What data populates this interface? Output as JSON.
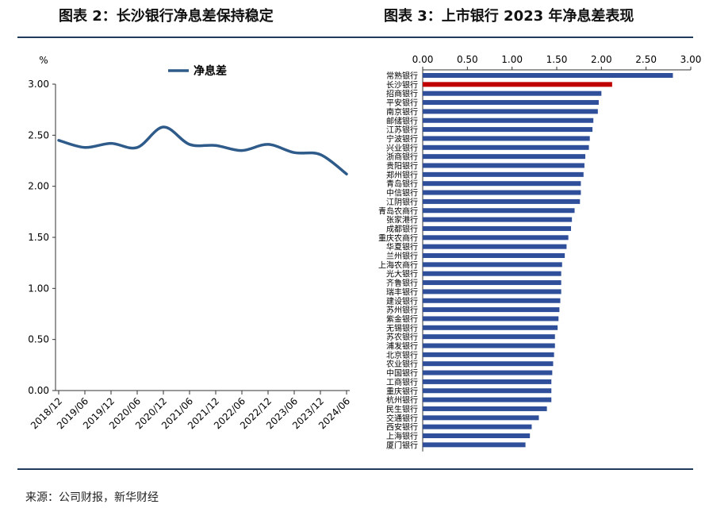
{
  "titles": {
    "left": "图表 2：长沙银行净息差保持稳定",
    "right": "图表 3：上市银行 2023 年净息差表现"
  },
  "source": "来源：公司财报，新华财经",
  "colors": {
    "line": "#2e5b8a",
    "bar": "#2f4f9a",
    "highlight": "#c00000",
    "rule": "#1f3a5a"
  },
  "chart_data": [
    {
      "type": "line",
      "unit": "%",
      "legend": "净息差",
      "legend_placement": "top",
      "x_ticks": [
        "2018/12",
        "2019/06",
        "2019/12",
        "2020/06",
        "2020/12",
        "2021/06",
        "2021/12",
        "2022/06",
        "2022/12",
        "2023/06",
        "2023/12",
        "2024/06"
      ],
      "series": [
        {
          "name": "净息差",
          "x": [
            "2018/12",
            "2019/06",
            "2019/12",
            "2020/06",
            "2020/12",
            "2021/06",
            "2021/12",
            "2022/06",
            "2022/12",
            "2023/06",
            "2023/12",
            "2024/06"
          ],
          "values": [
            2.45,
            2.38,
            2.42,
            2.38,
            2.58,
            2.41,
            2.4,
            2.35,
            2.41,
            2.33,
            2.31,
            2.12
          ]
        }
      ],
      "ylim": [
        0,
        3.0
      ],
      "y_ticks": [
        "0.00",
        "0.50",
        "1.00",
        "1.50",
        "2.00",
        "2.50",
        "3.00"
      ],
      "grid": false
    },
    {
      "type": "bar",
      "orientation": "horizontal",
      "x_ticks": [
        "0.00",
        "0.50",
        "1.00",
        "1.50",
        "2.00",
        "2.50",
        "3.00"
      ],
      "xlim": [
        0,
        3.0
      ],
      "highlight": "长沙银行",
      "categories": [
        "常熟银行",
        "长沙银行",
        "招商银行",
        "平安银行",
        "南京银行",
        "邮储银行",
        "江苏银行",
        "宁波银行",
        "兴业银行",
        "浙商银行",
        "贵阳银行",
        "郑州银行",
        "青岛银行",
        "中信银行",
        "江阴银行",
        "青岛农商行",
        "张家港行",
        "成都银行",
        "重庆农商行",
        "华夏银行",
        "兰州银行",
        "上海农商行",
        "光大银行",
        "齐鲁银行",
        "瑞丰银行",
        "建设银行",
        "苏州银行",
        "紫金银行",
        "无锡银行",
        "苏农银行",
        "浦发银行",
        "北京银行",
        "农业银行",
        "中国银行",
        "工商银行",
        "重庆银行",
        "杭州银行",
        "民生银行",
        "交通银行",
        "西安银行",
        "上海银行",
        "厦门银行"
      ],
      "values": [
        2.8,
        2.12,
        2.0,
        1.97,
        1.96,
        1.91,
        1.9,
        1.87,
        1.86,
        1.82,
        1.81,
        1.8,
        1.77,
        1.77,
        1.76,
        1.7,
        1.67,
        1.66,
        1.63,
        1.61,
        1.59,
        1.56,
        1.55,
        1.55,
        1.55,
        1.54,
        1.53,
        1.52,
        1.51,
        1.48,
        1.48,
        1.47,
        1.46,
        1.45,
        1.44,
        1.44,
        1.44,
        1.39,
        1.3,
        1.22,
        1.2,
        1.15
      ],
      "grid": false
    }
  ]
}
